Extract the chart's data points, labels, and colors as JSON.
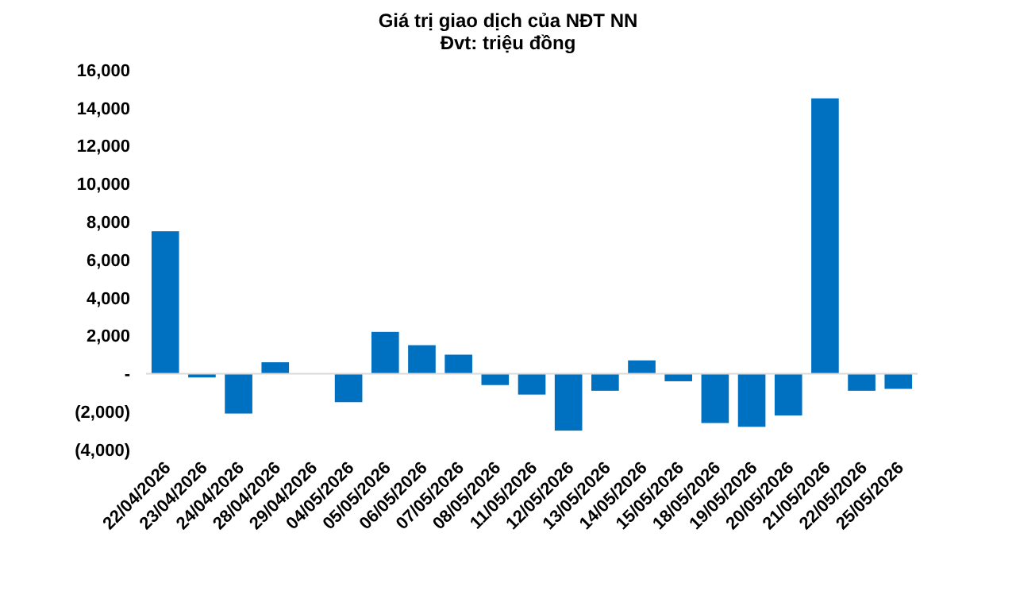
{
  "chart_data": {
    "type": "bar",
    "title": "Giá trị giao dịch của NĐT NN",
    "subtitle": "Đvt: triệu đồng",
    "categories": [
      "22/04/2026",
      "23/04/2026",
      "24/04/2026",
      "28/04/2026",
      "29/04/2026",
      "04/05/2026",
      "05/05/2026",
      "06/05/2026",
      "07/05/2026",
      "08/05/2026",
      "11/05/2026",
      "12/05/2026",
      "13/05/2026",
      "14/05/2026",
      "15/05/2026",
      "18/05/2026",
      "19/05/2026",
      "20/05/2026",
      "21/05/2026",
      "22/05/2026",
      "25/05/2026"
    ],
    "values": [
      7500,
      -200,
      -2100,
      600,
      0,
      -1500,
      2200,
      1500,
      1000,
      -600,
      -1100,
      -3000,
      -900,
      700,
      -400,
      -2600,
      -2800,
      -2200,
      14500,
      -900,
      -800
    ],
    "color": "#0070c0",
    "ylim": [
      -4000,
      16000
    ],
    "yticks": [
      {
        "value": -4000,
        "label": "(4,000)"
      },
      {
        "value": -2000,
        "label": "(2,000)"
      },
      {
        "value": 0,
        "label": "-"
      },
      {
        "value": 2000,
        "label": "2,000"
      },
      {
        "value": 4000,
        "label": "4,000"
      },
      {
        "value": 6000,
        "label": "6,000"
      },
      {
        "value": 8000,
        "label": "8,000"
      },
      {
        "value": 10000,
        "label": "10,000"
      },
      {
        "value": 12000,
        "label": "12,000"
      },
      {
        "value": 14000,
        "label": "14,000"
      },
      {
        "value": 16000,
        "label": "16,000"
      }
    ],
    "orientation": "vertical"
  }
}
